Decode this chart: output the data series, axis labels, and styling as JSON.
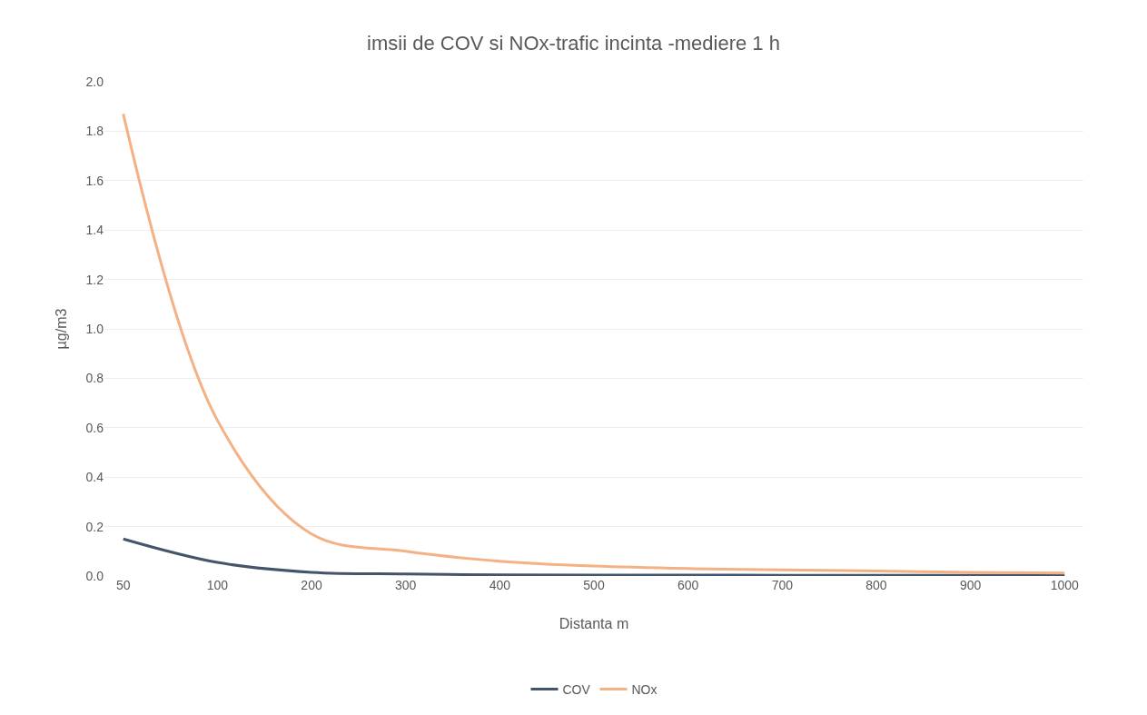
{
  "chart_data": {
    "type": "line",
    "title": "imsii de COV si NOx-trafic incinta -mediere 1 h",
    "xlabel": "Distanta m",
    "ylabel": "µg/m3",
    "categories": [
      "50",
      "100",
      "200",
      "300",
      "400",
      "500",
      "600",
      "700",
      "800",
      "900",
      "1000"
    ],
    "series": [
      {
        "name": "COV",
        "color": "#44546a",
        "values": [
          0.15,
          0.055,
          0.015,
          0.008,
          0.005,
          0.004,
          0.004,
          0.003,
          0.003,
          0.003,
          0.003
        ]
      },
      {
        "name": "NOx",
        "color": "#f4b183",
        "values": [
          1.87,
          0.63,
          0.17,
          0.1,
          0.06,
          0.04,
          0.03,
          0.025,
          0.02,
          0.015,
          0.012
        ]
      }
    ],
    "ylim": [
      0,
      2
    ],
    "yticks": [
      {
        "value": 0,
        "label": "0.0"
      },
      {
        "value": 0.2,
        "label": "0.2"
      },
      {
        "value": 0.4,
        "label": "0.4"
      },
      {
        "value": 0.6,
        "label": "0.6"
      },
      {
        "value": 0.8,
        "label": "0.8"
      },
      {
        "value": 1,
        "label": "1.0"
      },
      {
        "value": 1.2,
        "label": "1.2"
      },
      {
        "value": 1.4,
        "label": "1.4"
      },
      {
        "value": 1.6,
        "label": "1.6"
      },
      {
        "value": 1.8,
        "label": "1.8"
      },
      {
        "value": 2,
        "label": "2.0"
      }
    ],
    "grid": "y",
    "legend": "bottom",
    "marker": "none",
    "line_style": "solid"
  }
}
